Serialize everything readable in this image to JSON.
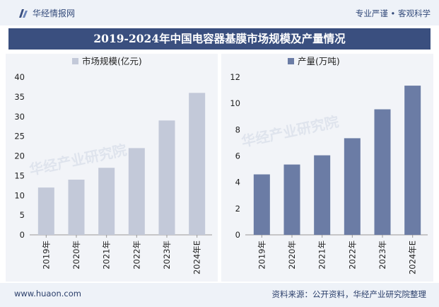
{
  "header": {
    "brand_name": "华经情报网",
    "tagline": "专业严谨 • 客观科学"
  },
  "title": "2019-2024年中国电容器基膜市场规模及产量情况",
  "footer": {
    "url": "www.huaon.com",
    "source": "资料来源：公开资料，华经产业研究院整理"
  },
  "watermark": "华经产业研究院",
  "colors": {
    "market_bar": "#c3c9d9",
    "output_bar": "#6b7ca5",
    "title_bg": "#3a4f7f",
    "panel_bg": "#f2f4f8"
  },
  "chart_data": [
    {
      "type": "bar",
      "categories": [
        "2019年",
        "2020年",
        "2021年",
        "2022年",
        "2023年",
        "2024年E"
      ],
      "series": [
        {
          "name": "市场规模(亿元)",
          "values": [
            12,
            14,
            17,
            22,
            29,
            36
          ]
        }
      ],
      "ylim": [
        0,
        40
      ],
      "yticks": [
        0,
        5,
        10,
        15,
        20,
        25,
        30,
        35,
        40
      ],
      "legend": "top-left",
      "grid": false
    },
    {
      "type": "bar",
      "categories": [
        "2019年",
        "2020年",
        "2021年",
        "2022年",
        "2023年",
        "2024年E"
      ],
      "series": [
        {
          "name": "产量(万吨)",
          "values": [
            4.6,
            5.35,
            6.05,
            7.35,
            9.55,
            11.35
          ]
        }
      ],
      "ylim": [
        0,
        12
      ],
      "yticks": [
        0,
        2,
        4,
        6,
        8,
        10,
        12
      ],
      "legend": "top-left",
      "grid": false
    }
  ]
}
